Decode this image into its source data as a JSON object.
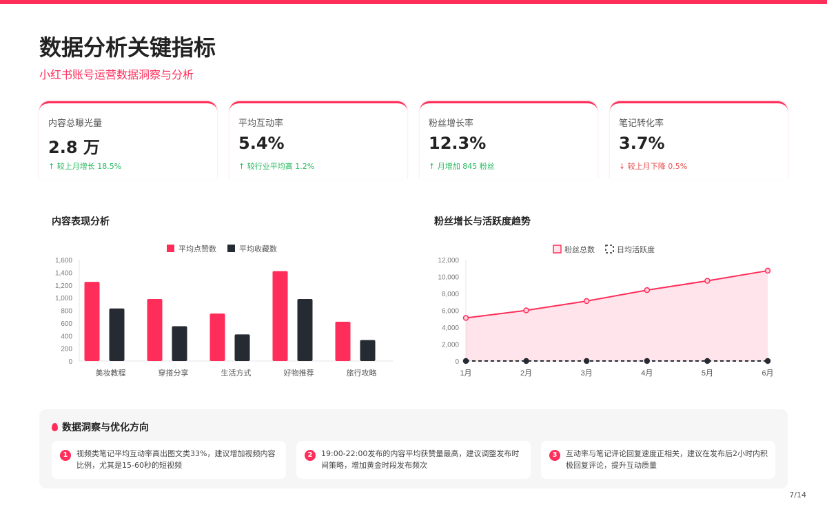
{
  "header": {
    "title": "数据分析关键指标",
    "subtitle": "小红书账号运营数据洞察与分析"
  },
  "cards": [
    {
      "label": "内容总曝光量",
      "value": "2.8 万",
      "change": "↑ 较上月增长 18.5%",
      "trend": "up"
    },
    {
      "label": "平均互动率",
      "value": "5.4%",
      "change": "↑ 较行业平均高 1.2%",
      "trend": "up"
    },
    {
      "label": "粉丝增长率",
      "value": "12.3%",
      "change": "↑ 月增加 845 粉丝",
      "trend": "up"
    },
    {
      "label": "笔记转化率",
      "value": "3.7%",
      "change": "↓ 较上月下降 0.5%",
      "trend": "down"
    }
  ],
  "colors": {
    "accent": "#ff2d5a",
    "dark": "#262a33",
    "up": "#22b85c",
    "down": "#e84a4a"
  },
  "chart_data": [
    {
      "type": "bar",
      "title": "内容表现分析",
      "categories": [
        "美妆教程",
        "穿搭分享",
        "生活方式",
        "好物推荐",
        "旅行攻略"
      ],
      "series": [
        {
          "name": "平均点赞数",
          "color": "#ff2d5a",
          "values": [
            1250,
            980,
            750,
            1420,
            620
          ]
        },
        {
          "name": "平均收藏数",
          "color": "#262a33",
          "values": [
            830,
            550,
            420,
            980,
            330
          ]
        }
      ],
      "ylim": [
        0,
        1600
      ],
      "yticks": [
        "0",
        "200",
        "400",
        "600",
        "800",
        "1,000",
        "1,200",
        "1,400",
        "1,600"
      ],
      "legend": "top",
      "grid": false
    },
    {
      "type": "line",
      "title": "粉丝增长与活跃度趋势",
      "categories": [
        "1月",
        "2月",
        "3月",
        "4月",
        "5月",
        "6月"
      ],
      "series": [
        {
          "name": "粉丝总数",
          "color": "#ff2d5a",
          "fill": true,
          "values": [
            5100,
            6000,
            7100,
            8400,
            9500,
            10700
          ]
        },
        {
          "name": "日均活跃度",
          "color": "#262a33",
          "dashed": true,
          "values": [
            0,
            0,
            0,
            0,
            0,
            0
          ]
        }
      ],
      "ylim": [
        0,
        12000
      ],
      "yticks": [
        "0",
        "2,000",
        "4,000",
        "6,000",
        "8,000",
        "10,000",
        "12,000"
      ],
      "legend": "top",
      "grid": false
    }
  ],
  "insights": {
    "title": "数据洞察与优化方向",
    "items": [
      {
        "num": "1",
        "text": "视频类笔记平均互动率高出图文类33%，建议增加视频内容比例，尤其是15-60秒的短视频"
      },
      {
        "num": "2",
        "text": "19:00-22:00发布的内容平均获赞量最高，建议调整发布时间策略，增加黄金时段发布频次"
      },
      {
        "num": "3",
        "text": "互动率与笔记评论回复速度正相关，建议在发布后2小时内积极回复评论，提升互动质量"
      }
    ]
  },
  "page": "7/14"
}
